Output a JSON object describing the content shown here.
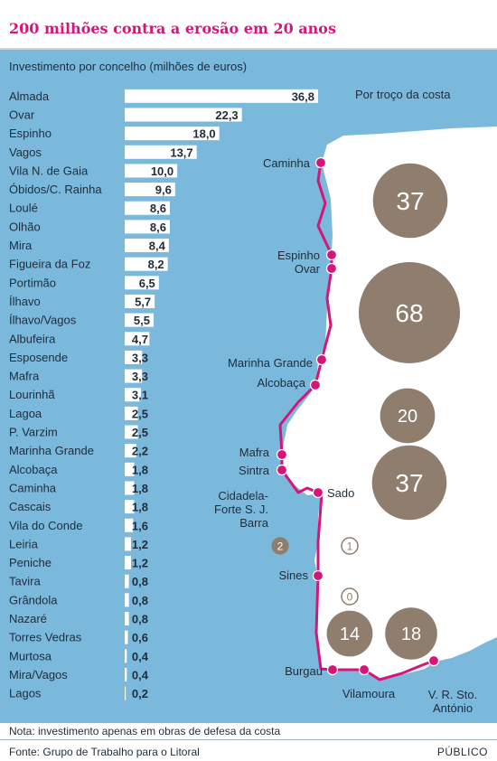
{
  "title": "200 milhões contra a erosão em 20 anos",
  "note": "Nota: investimento apenas em obras de defesa da costa",
  "source": "Fonte: Grupo de Trabalho para o Litoral",
  "brand": "PÚBLICO",
  "colors": {
    "title": "#d6157a",
    "sea": "#7ab8dc",
    "land": "#ffffff",
    "bar": "#ffffff",
    "route": "#d6157a",
    "bubble": "#8f7e6d",
    "text": "#1f2d3a"
  },
  "chart_data": [
    {
      "type": "bar",
      "orientation": "horizontal",
      "title": "Investimento por concelho (milhões de euros)",
      "categories": [
        "Almada",
        "Ovar",
        "Espinho",
        "Vagos",
        "Vila N. de Gaia",
        "Óbidos/C. Rainha",
        "Loulé",
        "Olhão",
        "Mira",
        "Figueira da Foz",
        "Portimão",
        "Ílhavo",
        "Ílhavo/Vagos",
        "Albufeira",
        "Esposende",
        "Mafra",
        "Lourinhã",
        "Lagoa",
        "P. Varzim",
        "Marinha Grande",
        "Alcobaça",
        "Caminha",
        "Cascais",
        "Vila do Conde",
        "Leiria",
        "Peniche",
        "Tavira",
        "Grândola",
        "Nazaré",
        "Torres Vedras",
        "Murtosa",
        "Mira/Vagos",
        "Lagos"
      ],
      "values": [
        36.8,
        22.3,
        18.0,
        13.7,
        10.0,
        9.6,
        8.6,
        8.6,
        8.4,
        8.2,
        6.5,
        5.7,
        5.5,
        4.7,
        3.3,
        3.3,
        3.1,
        2.5,
        2.5,
        2.2,
        1.8,
        1.8,
        1.8,
        1.6,
        1.2,
        1.2,
        0.8,
        0.8,
        0.8,
        0.6,
        0.4,
        0.4,
        0.2
      ],
      "value_labels": [
        "36,8",
        "22,3",
        "18,0",
        "13,7",
        "10,0",
        "9,6",
        "8,6",
        "8,6",
        "8,4",
        "8,2",
        "6,5",
        "5,7",
        "5,5",
        "4,7",
        "3,3",
        "3,3",
        "3,1",
        "2,5",
        "2,5",
        "2,2",
        "1,8",
        "1,8",
        "1,8",
        "1,6",
        "1,2",
        "1,2",
        "0,8",
        "0,8",
        "0,8",
        "0,6",
        "0,4",
        "0,4",
        "0,2"
      ]
    },
    {
      "type": "bubble-map",
      "title": "Por troço da costa",
      "points": [
        {
          "name": "Caminha"
        },
        {
          "name": "Espinho"
        },
        {
          "name": "Ovar"
        },
        {
          "name": "Marinha Grande"
        },
        {
          "name": "Alcobaça"
        },
        {
          "name": "Mafra"
        },
        {
          "name": "Sintra"
        },
        {
          "name": "Sado"
        },
        {
          "name": "Cidadela-\nForte S. J.\nBarra"
        },
        {
          "name": "Sines"
        },
        {
          "name": "Burgau"
        },
        {
          "name": "Vilamoura"
        },
        {
          "name": "V. R. Sto.\nAntónio"
        }
      ],
      "bubbles": [
        {
          "label": "37",
          "value": 37
        },
        {
          "label": "68",
          "value": 68
        },
        {
          "label": "20",
          "value": 20
        },
        {
          "label": "37",
          "value": 37
        },
        {
          "label": "2",
          "value": 2
        },
        {
          "label": "1",
          "value": 1
        },
        {
          "label": "0",
          "value": 0
        },
        {
          "label": "14",
          "value": 14
        },
        {
          "label": "18",
          "value": 18
        }
      ]
    }
  ]
}
